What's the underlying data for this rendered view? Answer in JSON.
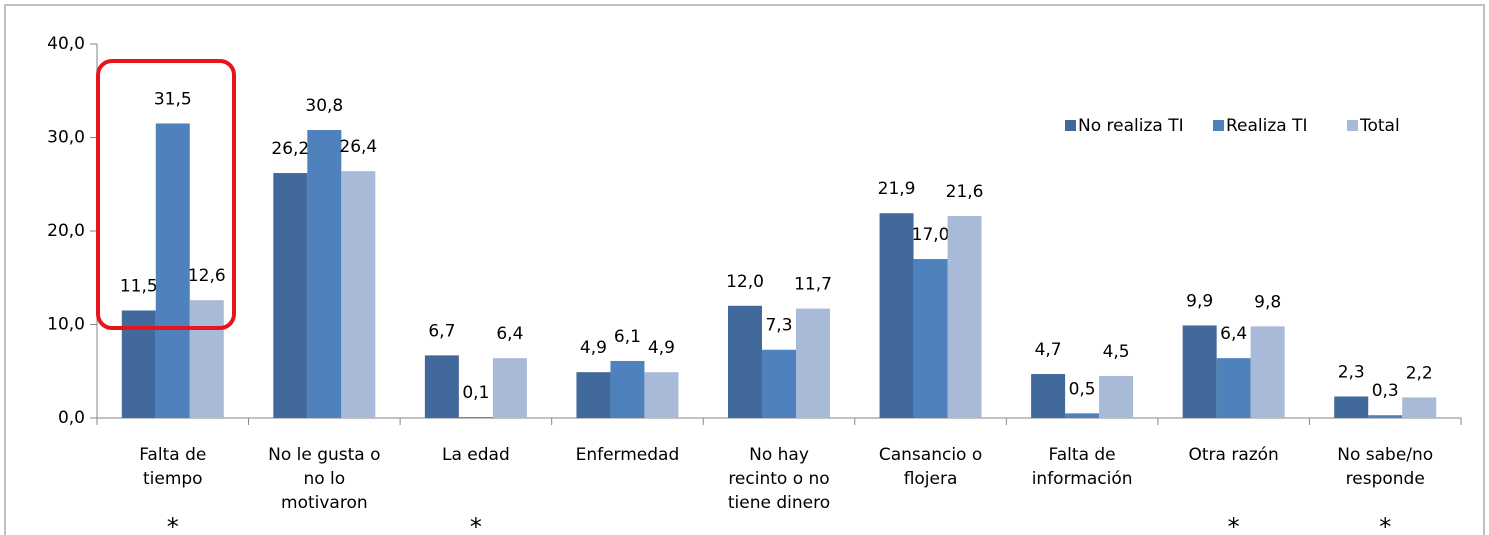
{
  "chart_data": {
    "type": "bar",
    "categories": [
      [
        "Falta de",
        "tiempo"
      ],
      [
        "No le gusta o",
        "no lo",
        "motivaron"
      ],
      [
        "La edad"
      ],
      [
        "Enfermedad"
      ],
      [
        "No hay",
        "recinto o no",
        "tiene dinero"
      ],
      [
        "Cansancio o",
        "flojera"
      ],
      [
        "Falta de",
        "información"
      ],
      [
        "Otra razón"
      ],
      [
        "No sabe/no",
        "responde"
      ]
    ],
    "notes": [
      "*",
      null,
      "*",
      null,
      null,
      null,
      null,
      "*",
      "*"
    ],
    "series": [
      {
        "name": "No realiza TI",
        "color": "#41699b",
        "values": [
          11.5,
          26.2,
          6.7,
          4.9,
          12.0,
          21.9,
          4.7,
          9.9,
          2.3
        ],
        "value_labels": [
          "11,5",
          "26,2",
          "6,7",
          "4,9",
          "12,0",
          "21,9",
          "4,7",
          "9,9",
          "2,3"
        ]
      },
      {
        "name": "Realiza TI",
        "color": "#4f81bd",
        "values": [
          31.5,
          30.8,
          0.1,
          6.1,
          7.3,
          17.0,
          0.5,
          6.4,
          0.3
        ],
        "value_labels": [
          "31,5",
          "30,8",
          "0,1",
          "6,1",
          "7,3",
          "17,0",
          "0,5",
          "6,4",
          "0,3"
        ]
      },
      {
        "name": "Total",
        "color": "#a9b9d8",
        "values": [
          12.6,
          26.4,
          6.4,
          4.9,
          11.7,
          21.6,
          4.5,
          9.8,
          2.2
        ],
        "value_labels": [
          "12,6",
          "26,4",
          "6,4",
          "4,9",
          "11,7",
          "21,6",
          "4,5",
          "9,8",
          "2,2"
        ]
      }
    ],
    "ylim": [
      0,
      40
    ],
    "yticks": [
      {
        "value": 0,
        "label": "0,0"
      },
      {
        "value": 10,
        "label": "10,0"
      },
      {
        "value": 20,
        "label": "20,0"
      },
      {
        "value": 30,
        "label": "30,0"
      },
      {
        "value": 40,
        "label": "40,0"
      }
    ],
    "legend": "top-right"
  }
}
